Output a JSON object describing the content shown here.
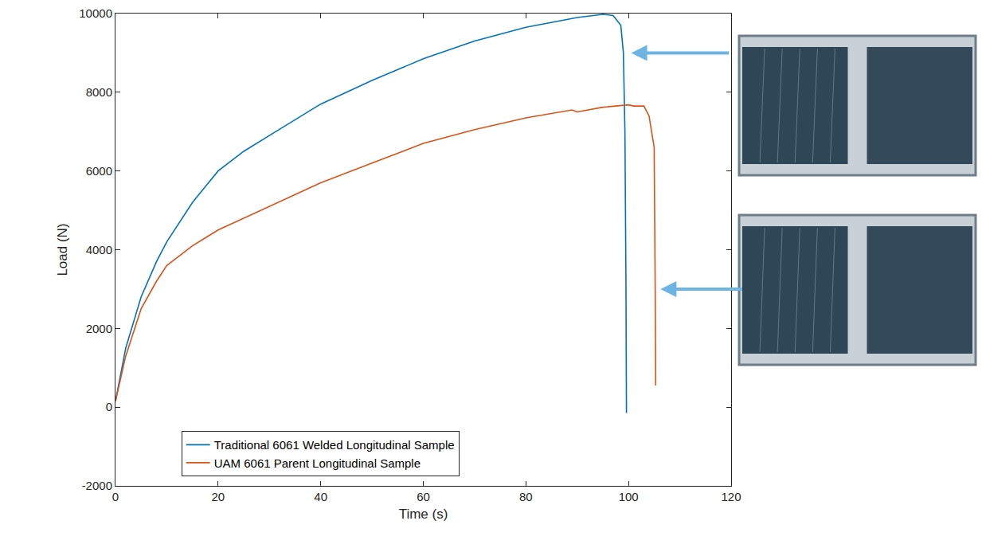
{
  "chart_data": {
    "type": "line",
    "x_label": "Time (s)",
    "y_label": "Load (N)",
    "xlim": [
      0,
      120
    ],
    "xticks": [
      0,
      20,
      40,
      60,
      80,
      100,
      120
    ],
    "ylim": [
      -2000,
      10000
    ],
    "yticks": [
      -2000,
      0,
      2000,
      4000,
      6000,
      8000,
      10000
    ],
    "grid": false,
    "legend": "lower center",
    "series": [
      {
        "name": "Traditional 6061 Welded Longitudinal Sample",
        "color": "#0072BD",
        "line_style": "solid",
        "x": [
          0,
          2,
          5,
          8,
          10,
          15,
          20,
          25,
          30,
          40,
          50,
          60,
          70,
          80,
          90,
          95,
          97,
          98.5,
          99,
          99.3,
          99.5,
          99.6
        ],
        "values": [
          150,
          1500,
          2800,
          3700,
          4200,
          5200,
          6000,
          6500,
          6900,
          7700,
          8300,
          8850,
          9300,
          9650,
          9900,
          9980,
          9950,
          9700,
          9000,
          7000,
          3200,
          -150
        ]
      },
      {
        "name": "UAM 6061 Parent Longitudinal Sample",
        "color": "#D95319",
        "line_style": "solid",
        "x": [
          0,
          2,
          5,
          8,
          10,
          15,
          20,
          30,
          40,
          50,
          60,
          70,
          80,
          89,
          90,
          95,
          100,
          101,
          103,
          104,
          104.5,
          105,
          105.2,
          105.3
        ],
        "values": [
          150,
          1300,
          2500,
          3200,
          3600,
          4100,
          4500,
          5100,
          5700,
          6200,
          6700,
          7050,
          7350,
          7550,
          7500,
          7620,
          7680,
          7650,
          7650,
          7400,
          7000,
          6600,
          3000,
          550
        ]
      }
    ]
  }
}
